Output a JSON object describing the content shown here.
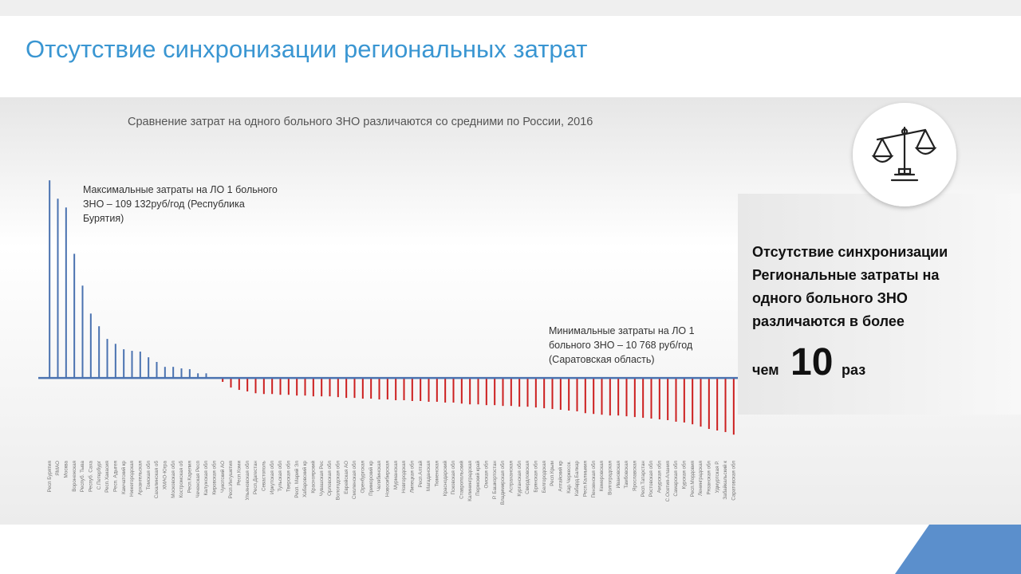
{
  "slide": {
    "title": "Отсутствие синхронизации региональных затрат"
  },
  "chart_data": {
    "type": "bar",
    "title": "Сравнение затрат на одного больного ЗНО различаются со средними по России, 2016",
    "categories": [
      "Респ Бурятия",
      "ЯМАО",
      "Москва",
      "Воронежская",
      "Респуб. Тыва",
      "Респуб. Саха",
      "С.Петербург",
      "Респ.Хакасия",
      "Респ. Адыгея",
      "Камчатский кр",
      "Нижегородская",
      "Архангельская",
      "Томская обл",
      "Сахалинская об",
      "ХМАО-Югра",
      "Московская обл",
      "Костромская об",
      "Респ.Карелия",
      "Чеченская Респ",
      "Калужская обл",
      "Кировская обл",
      "Чукотский АО",
      "Респ.Ингушетия",
      "Респ.Коми",
      "Ульяновская обл",
      "Респ.Дагестан",
      "Севастополь",
      "Иркутская обл",
      "Тульская обл",
      "Тверская обл",
      "Респ. Марий Эл",
      "Хабаровский кр",
      "Красноярский",
      "Чувашская Рес",
      "Орловская обл",
      "Вологодская обл",
      "Еврейская АО",
      "Смоленская обл",
      "Оренбургская",
      "Приморский кр",
      "Челябинская",
      "Новосибирская",
      "Мурманская",
      "Новгородская",
      "Липецкая обл",
      "Респ.Алтай",
      "Магаданская",
      "Тюменская",
      "Краснодарский",
      "Псковская обл",
      "Ставропольский",
      "Калининградская",
      "Пермский край",
      "Омская обл",
      "Р. Башкортостан",
      "Владимирская обл",
      "Астраханская",
      "Курганская обл",
      "Свердловская",
      "Брянская обл",
      "Белгородская",
      "Респ.Крым",
      "Алтайский кр",
      "Кар.Черкесск.",
      "Кабард.Балкар",
      "Респ.Калмыкия",
      "Пензенская обл",
      "Кемеровская",
      "Волгоградская",
      "Ивановская",
      "Тамбовская",
      "Ярославская",
      "Респ.Татарстан",
      "Ростовская обл",
      "Амурская обл",
      "С.Осетия-Алания",
      "Самарская обл",
      "Курская обл",
      "Респ.Мордовия",
      "Ленинградская",
      "Рязанская обл",
      "Удмуртская Р.",
      "Забайкальский к",
      "Саратовская обл"
    ],
    "values": [
      76.4,
      69.3,
      65.9,
      48.0,
      35.7,
      24.9,
      20.0,
      15.1,
      13.2,
      11.1,
      10.5,
      10.2,
      8.0,
      6.2,
      4.3,
      4.3,
      3.7,
      3.4,
      1.8,
      1.8,
      0.3,
      -1.5,
      -3.7,
      -4.6,
      -5.2,
      -5.9,
      -6.2,
      -6.2,
      -6.5,
      -6.5,
      -6.8,
      -6.8,
      -7.1,
      -7.1,
      -7.1,
      -7.4,
      -7.7,
      -7.7,
      -8.0,
      -8.0,
      -8.3,
      -8.3,
      -8.6,
      -8.6,
      -8.9,
      -8.9,
      -9.2,
      -9.2,
      -9.5,
      -9.5,
      -9.9,
      -10.2,
      -10.2,
      -10.5,
      -10.5,
      -10.8,
      -10.8,
      -11.1,
      -11.1,
      -11.4,
      -11.7,
      -12.0,
      -12.3,
      -12.6,
      -12.9,
      -13.6,
      -13.9,
      -14.2,
      -14.5,
      -14.5,
      -14.8,
      -15.1,
      -15.4,
      -15.7,
      -16.0,
      -16.3,
      -16.9,
      -17.2,
      -17.9,
      -18.8,
      -19.7,
      -20.3,
      -20.9,
      -21.9
    ],
    "color": "#4a72b0",
    "negative_color": "#cc1f1f",
    "baseline_color": "#4a72b0",
    "ylim": [
      -24,
      78
    ],
    "annotations": [
      {
        "lines": [
          "Максимальные затраты на ЛО 1 больного",
          "ЗНО – 109 132руб/год (Республика",
          "Бурятия)"
        ]
      },
      {
        "lines": [
          "Минимальные затраты на ЛО 1",
          "больного ЗНО – 10 768 руб/год",
          "(Саратовская область)"
        ]
      }
    ]
  },
  "panel": {
    "lines": [
      "Отсутствие синхронизации",
      "Региональные затраты на",
      "одного больного ЗНО",
      "различаются в более"
    ],
    "prefix": "чем",
    "number": "10",
    "suffix": "раз"
  }
}
